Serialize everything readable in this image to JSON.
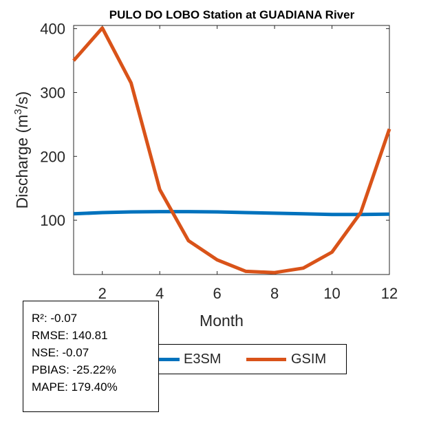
{
  "chart_data": {
    "type": "line",
    "title": "PULO DO LOBO  Station at  GUADIANA  River",
    "xlabel": "Month",
    "ylabel_main": "Discharge (m",
    "ylabel_sup": "3",
    "ylabel_tail": "/s)",
    "xlim": [
      1,
      12
    ],
    "ylim": [
      15,
      405
    ],
    "xticks": [
      2,
      4,
      6,
      8,
      10,
      12
    ],
    "yticks": [
      100,
      200,
      300,
      400
    ],
    "grid": false,
    "legend_position": "bottom-center",
    "x": [
      1,
      2,
      3,
      4,
      5,
      6,
      7,
      8,
      9,
      10,
      11,
      12
    ],
    "series": [
      {
        "name": "E3SM",
        "color": "#0072BD",
        "values": [
          110,
          112,
          113,
          113.5,
          113.5,
          113,
          112,
          111,
          110,
          109,
          109,
          109.5
        ]
      },
      {
        "name": "GSIM",
        "color": "#D95319",
        "values": [
          350,
          401,
          315,
          148,
          68,
          38,
          20,
          18,
          25,
          50,
          112,
          243
        ]
      }
    ]
  },
  "stats": {
    "r2": "R²: -0.07",
    "rmse": "RMSE: 140.81",
    "nse": "NSE: -0.07",
    "pbias": "PBIAS: -25.22%",
    "mape": "MAPE: 179.40%"
  }
}
